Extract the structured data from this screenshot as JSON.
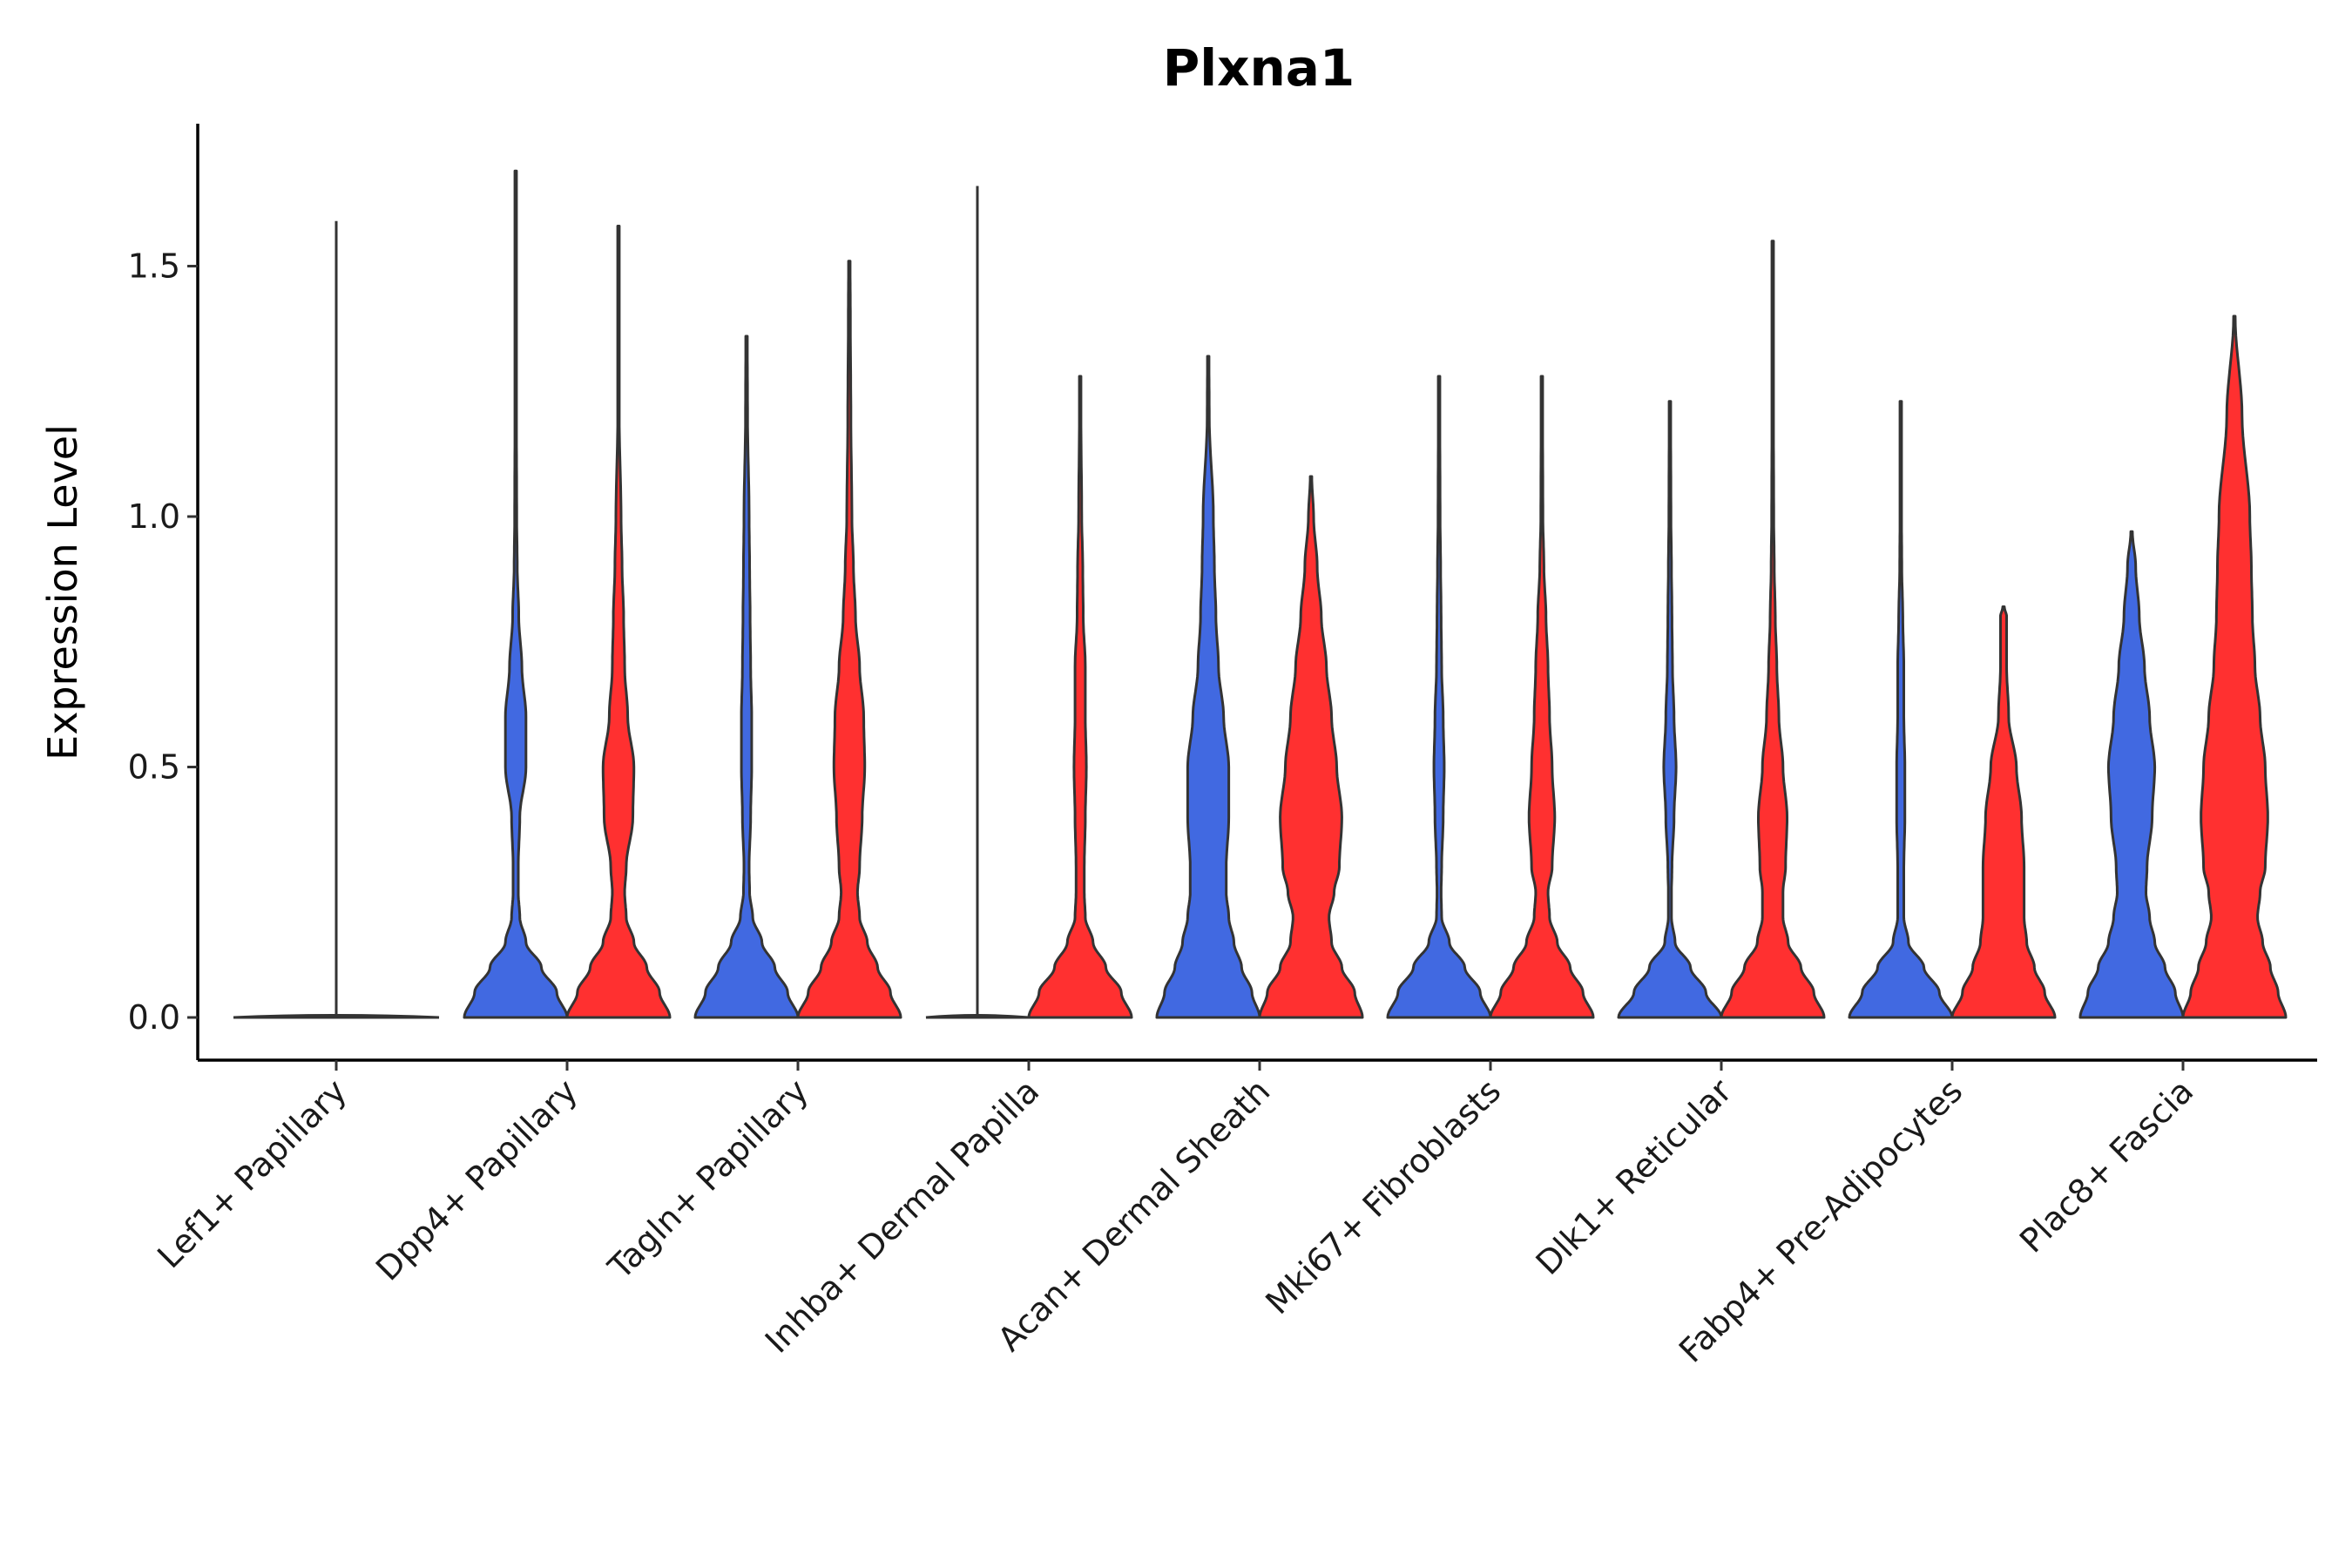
{
  "chart_data": {
    "type": "violin",
    "title": "Plxna1",
    "xlabel": "",
    "ylabel": "Expression Level",
    "ylim": [
      -0.09,
      1.78
    ],
    "yticks": [
      0.0,
      0.5,
      1.0,
      1.5
    ],
    "ytick_labels": [
      "0.0",
      "0.5",
      "1.0",
      "1.5"
    ],
    "grid": false,
    "legend": "none",
    "colors": {
      "group1": "#4169E1",
      "group2": "#FF3030",
      "single": "#333333",
      "outline": "#333333"
    },
    "density_grid": [
      0,
      0.05,
      0.1,
      0.15,
      0.2,
      0.25,
      0.3,
      0.4,
      0.5,
      0.6,
      0.7,
      0.8,
      0.9,
      1.0,
      1.2,
      1.4
    ],
    "categories": [
      "Lef1+ Papillary",
      "Dpp4+ Papillary",
      "Tagln+ Papillary",
      "Inhba+ Dermal Papilla",
      "Acan+ Dermal Sheath",
      "Mki67+ Fibroblasts",
      "Dlk1+ Reticular",
      "Fabp4+ Pre-Adipocytes",
      "Plac8+ Fascia"
    ],
    "violins": [
      [
        {
          "group": "single",
          "max": 1.59,
          "flat": true,
          "density": [
            1
          ]
        }
      ],
      [
        {
          "group": "group1",
          "max": 1.69,
          "density": [
            1,
            0.8,
            0.5,
            0.2,
            0.08,
            0.05,
            0.05,
            0.08,
            0.2,
            0.2,
            0.12,
            0.06,
            0.03,
            0.02,
            0.01,
            0.01
          ]
        },
        {
          "group": "group2",
          "max": 1.58,
          "density": [
            1,
            0.8,
            0.55,
            0.3,
            0.15,
            0.12,
            0.15,
            0.28,
            0.3,
            0.18,
            0.12,
            0.1,
            0.07,
            0.05,
            0.01,
            0.01
          ]
        }
      ],
      [
        {
          "group": "group1",
          "max": 1.36,
          "density": [
            1,
            0.8,
            0.55,
            0.3,
            0.12,
            0.06,
            0.05,
            0.08,
            0.1,
            0.1,
            0.08,
            0.07,
            0.06,
            0.05,
            0.02
          ]
        },
        {
          "group": "group2",
          "max": 1.51,
          "density": [
            1,
            0.8,
            0.55,
            0.35,
            0.2,
            0.16,
            0.2,
            0.25,
            0.3,
            0.28,
            0.2,
            0.12,
            0.08,
            0.05,
            0.03,
            0.02
          ]
        }
      ],
      [
        {
          "group": "single",
          "max": 1.66,
          "flat": true,
          "density": [
            1
          ]
        },
        {
          "group": "group2",
          "max": 1.28,
          "density": [
            1,
            0.8,
            0.5,
            0.25,
            0.1,
            0.08,
            0.08,
            0.1,
            0.12,
            0.1,
            0.1,
            0.06,
            0.05,
            0.03,
            0.01
          ]
        }
      ],
      [
        {
          "group": "group1",
          "max": 1.32,
          "density": [
            1,
            0.85,
            0.65,
            0.5,
            0.4,
            0.35,
            0.35,
            0.4,
            0.4,
            0.3,
            0.2,
            0.15,
            0.12,
            0.1,
            0.02
          ]
        },
        {
          "group": "group2",
          "max": 1.08,
          "density": [
            1,
            0.85,
            0.6,
            0.4,
            0.35,
            0.45,
            0.55,
            0.6,
            0.5,
            0.4,
            0.3,
            0.2,
            0.12,
            0.05
          ]
        }
      ],
      [
        {
          "group": "group1",
          "max": 1.28,
          "density": [
            1,
            0.8,
            0.5,
            0.2,
            0.05,
            0.04,
            0.05,
            0.08,
            0.1,
            0.08,
            0.05,
            0.04,
            0.03,
            0.02,
            0.01
          ]
        },
        {
          "group": "group2",
          "max": 1.28,
          "density": [
            1,
            0.8,
            0.55,
            0.3,
            0.15,
            0.12,
            0.2,
            0.25,
            0.2,
            0.15,
            0.12,
            0.08,
            0.04,
            0.02,
            0.01
          ]
        }
      ],
      [
        {
          "group": "group1",
          "max": 1.23,
          "density": [
            1,
            0.7,
            0.4,
            0.1,
            0.03,
            0.03,
            0.04,
            0.08,
            0.12,
            0.08,
            0.05,
            0.04,
            0.03,
            0.02,
            0.01
          ]
        },
        {
          "group": "group2",
          "max": 1.55,
          "density": [
            1,
            0.8,
            0.55,
            0.3,
            0.2,
            0.2,
            0.25,
            0.28,
            0.2,
            0.12,
            0.08,
            0.05,
            0.03,
            0.02,
            0.01,
            0.01
          ]
        }
      ],
      [
        {
          "group": "group1",
          "max": 1.23,
          "density": [
            1,
            0.75,
            0.45,
            0.15,
            0.06,
            0.06,
            0.06,
            0.08,
            0.08,
            0.06,
            0.06,
            0.04,
            0.02,
            0.01,
            0.01
          ]
        },
        {
          "group": "group2",
          "max": 0.82,
          "density": [
            1,
            0.8,
            0.6,
            0.45,
            0.4,
            0.4,
            0.4,
            0.35,
            0.25,
            0.1,
            0.06,
            0.06
          ]
        }
      ],
      [
        {
          "group": "group1",
          "max": 0.97,
          "density": [
            1,
            0.85,
            0.65,
            0.45,
            0.35,
            0.28,
            0.3,
            0.4,
            0.45,
            0.35,
            0.25,
            0.15,
            0.08
          ]
        },
        {
          "group": "group2",
          "max": 1.4,
          "density": [
            1,
            0.85,
            0.7,
            0.55,
            0.45,
            0.5,
            0.6,
            0.65,
            0.6,
            0.5,
            0.4,
            0.35,
            0.33,
            0.3,
            0.15,
            0.05
          ]
        }
      ]
    ]
  }
}
